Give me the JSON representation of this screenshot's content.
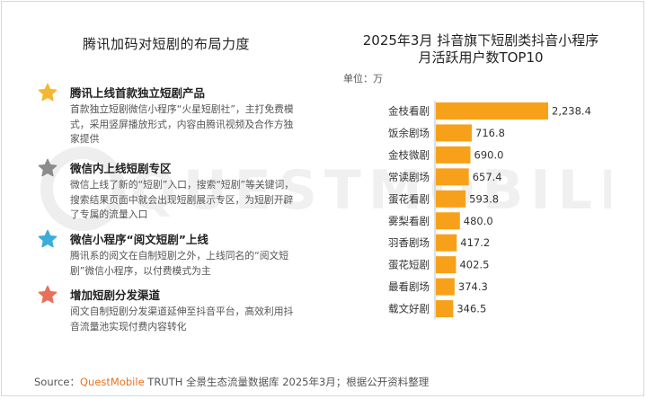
{
  "left_panel": {
    "title": "腾讯加码对短剧的布局力度",
    "items": [
      {
        "icon": "star-icon",
        "color": "#f5b731",
        "heading": "腾讯上线首款独立短剧产品",
        "desc_lines": [
          "首款独立短剧微信小程序“火星短剧社”，主打免费模",
          "式，采用竖屏播放形式，内容由腾讯视频及合作方独",
          "家提供"
        ]
      },
      {
        "icon": "star-icon",
        "color": "#8c8c8c",
        "heading": "微信内上线短剧专区",
        "desc_lines": [
          "微信上线了新的“短剧”入口，搜索“短剧”等关键词，",
          "搜索结果页面中就会出现短剧展示专区，为短剧开辟",
          "了专属的流量入口"
        ]
      },
      {
        "icon": "star-icon",
        "color": "#3aaed8",
        "heading": "微信小程序“阅文短剧”上线",
        "desc_lines": [
          "腾讯系的阅文在自制短剧之外，上线同名的“阅文短",
          "剧”微信小程序，以付费模式为主"
        ]
      },
      {
        "icon": "star-icon",
        "color": "#e8705a",
        "heading": "增加短剧分发渠道",
        "desc_lines": [
          "阅文自制短剧分发渠道延伸至抖音平台，高效利用抖",
          "音流量池实现付费内容转化"
        ]
      }
    ]
  },
  "chart_data": {
    "type": "bar",
    "orientation": "horizontal",
    "title_lines": [
      "2025年3月 抖音旗下短剧类抖音小程序",
      "月活跃用户数TOP10"
    ],
    "unit": "单位：万",
    "categories": [
      "金枝看剧",
      "饭余剧场",
      "金枝微剧",
      "常读剧场",
      "蛋花看剧",
      "雾梨看剧",
      "羽香剧场",
      "蛋花短剧",
      "最看剧场",
      "载文好剧"
    ],
    "values": [
      2238.4,
      716.8,
      690.0,
      657.4,
      593.8,
      480.0,
      417.2,
      402.5,
      374.3,
      346.5
    ],
    "value_labels": [
      "2,238.4",
      "716.8",
      "690.0",
      "657.4",
      "593.8",
      "480.0",
      "417.2",
      "402.5",
      "374.3",
      "346.5"
    ],
    "bar_color": "#f7a11a",
    "label_color": "#333333"
  },
  "footer": {
    "prefix": "Source：",
    "brand": "QuestMobile",
    "suffix": " TRUTH 全景生态流量数据库 2025年3月；根据公开资料整理"
  },
  "watermark_text": "QUESTMOBILE"
}
